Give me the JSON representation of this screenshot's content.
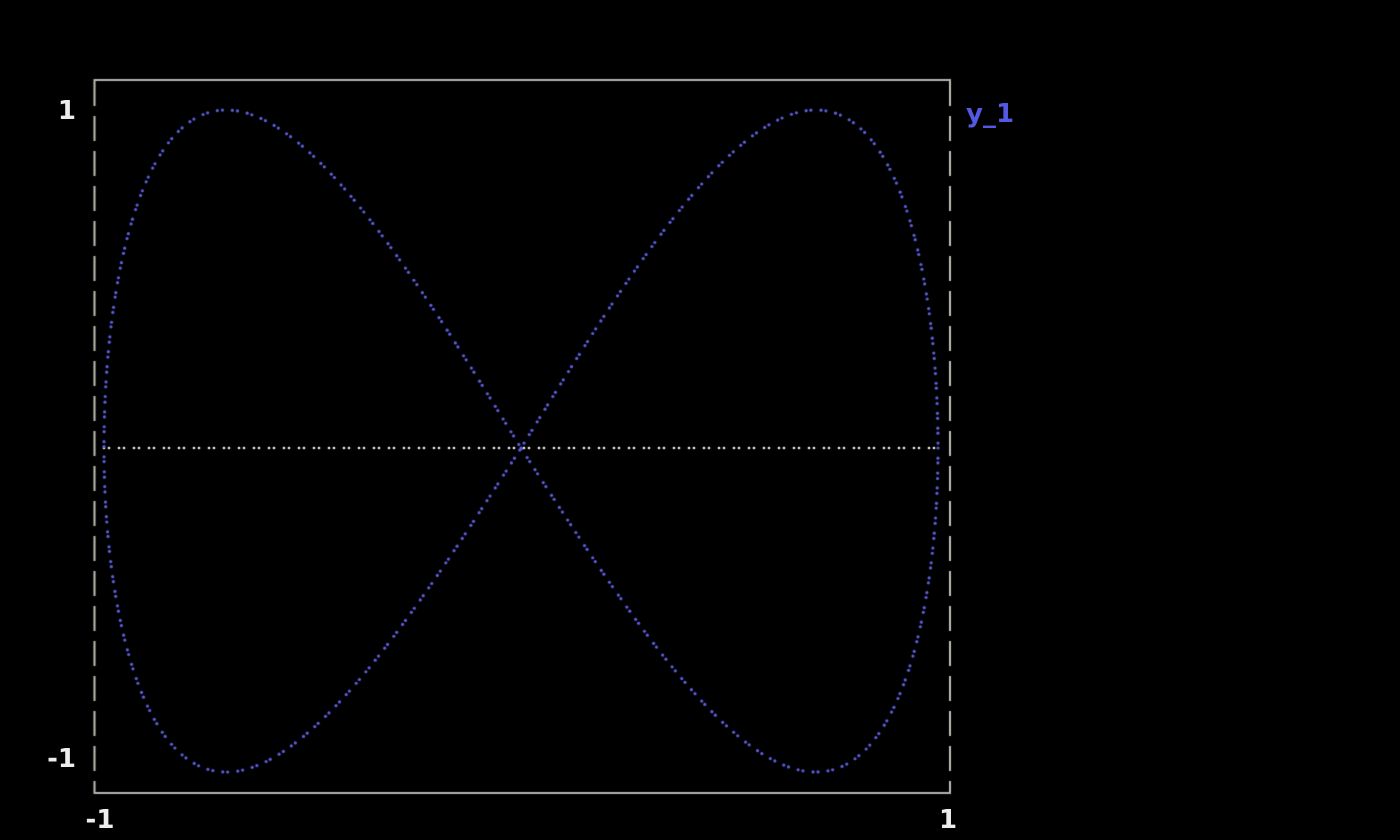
{
  "figure": {
    "background": "#000000",
    "border_solid_color": "#b5b5b5",
    "border_dashed_color": "#c3bfb4",
    "tick_label_color": "#ededed"
  },
  "legend": {
    "label": "y_1",
    "color": "#5459e4",
    "position": "top-right-outside"
  },
  "chart_data": {
    "type": "scatter",
    "subtype": "dotted-parametric-curve",
    "title": "",
    "xlabel": "",
    "ylabel": "",
    "xlim": [
      -1,
      1
    ],
    "ylim": [
      -1,
      1
    ],
    "grid": false,
    "x_ticks": [
      {
        "value": -1,
        "label": "-1"
      },
      {
        "value": 1,
        "label": "1"
      }
    ],
    "y_ticks": [
      {
        "value": -1,
        "label": "-1"
      },
      {
        "value": 1,
        "label": "1"
      }
    ],
    "series": [
      {
        "name": "y_1",
        "color": "#5c5fdd",
        "style": "dotted",
        "parametric": {
          "x": "sin(a*t)",
          "y": "sin(b*t)",
          "a": 1,
          "b": 2,
          "t_min": 0,
          "t_max": 6.28318,
          "description": "Lissajous figure-eight (bowtie) curve, x=sin(t), y=sin(2t)"
        }
      }
    ],
    "zero_axis": {
      "y": 0,
      "style": "dotted",
      "color": "#f2f2f2",
      "x_from": -1,
      "x_to": 1
    },
    "legend_entries": [
      "y_1"
    ]
  }
}
